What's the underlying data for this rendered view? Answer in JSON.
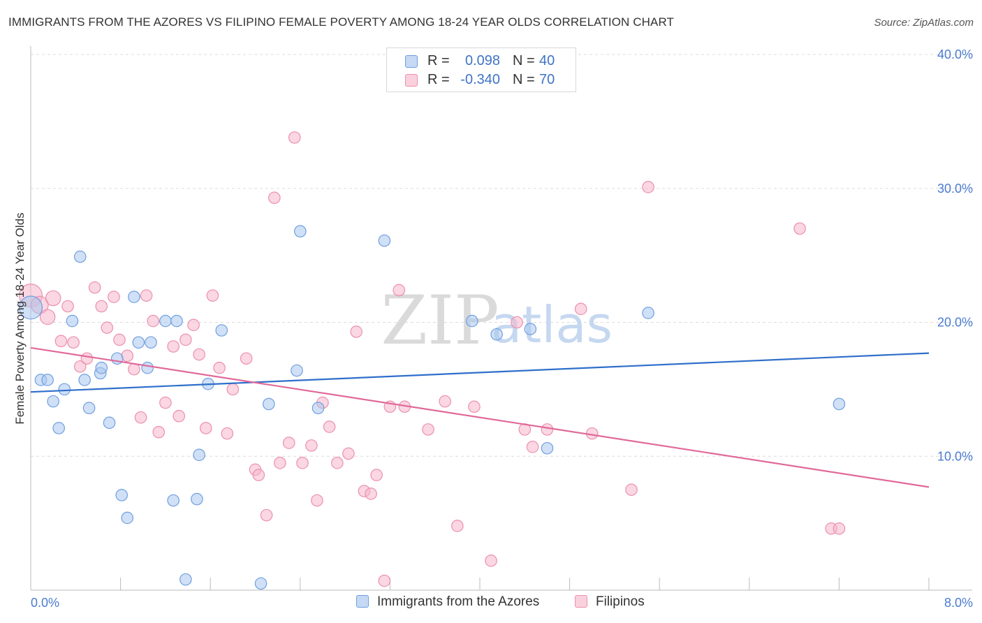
{
  "header": {
    "title": "IMMIGRANTS FROM THE AZORES VS FILIPINO FEMALE POVERTY AMONG 18-24 YEAR OLDS CORRELATION CHART",
    "source": "Source: ZipAtlas.com"
  },
  "legend": {
    "rows": [
      {
        "r_label": "R =",
        "r_value": "0.098",
        "n_label": "N =",
        "n_value": "40"
      },
      {
        "r_label": "R =",
        "r_value": "-0.340",
        "n_label": "N =",
        "n_value": "70"
      }
    ]
  },
  "bottom_legend": {
    "series1": "Immigrants from the Azores",
    "series2": "Filipinos"
  },
  "watermark": {
    "part1": "ZIP",
    "part2": "atlas"
  },
  "colors": {
    "blue_fill": "#a9c6ee",
    "blue_stroke": "#6f9fe0",
    "blue_line": "#2f6fca",
    "pink_fill": "#f6b7cb",
    "pink_stroke": "#ec8fae",
    "pink_line": "#e0699a",
    "tick_text": "#4a7bd0"
  },
  "chart_data": {
    "type": "scatter",
    "title": "IMMIGRANTS FROM THE AZORES VS FILIPINO FEMALE POVERTY AMONG 18-24 YEAR OLDS CORRELATION CHART",
    "xlabel": "",
    "ylabel": "Female Poverty Among 18-24 Year Olds",
    "xlim": [
      0,
      8
    ],
    "ylim": [
      0,
      40
    ],
    "x_tick_labels": [
      {
        "value": 0,
        "label": "0.0%"
      },
      {
        "value": 8,
        "label": "8.0%"
      }
    ],
    "y_ticks": [
      {
        "value": 10,
        "label": "10.0%"
      },
      {
        "value": 20,
        "label": "20.0%"
      },
      {
        "value": 30,
        "label": "30.0%"
      },
      {
        "value": 40,
        "label": "40.0%"
      }
    ],
    "series": [
      {
        "name": "Immigrants from the Azores",
        "color": "blue",
        "trend": {
          "x": [
            0,
            8
          ],
          "y": [
            14.8,
            17.7
          ]
        },
        "points": [
          [
            0.0,
            21.1,
            2.0
          ],
          [
            0.09,
            15.7,
            1
          ],
          [
            0.15,
            15.7,
            1
          ],
          [
            0.2,
            14.1,
            1
          ],
          [
            0.25,
            12.1,
            1
          ],
          [
            0.3,
            15.0,
            1
          ],
          [
            0.37,
            20.1,
            1
          ],
          [
            0.44,
            24.9,
            1
          ],
          [
            0.48,
            15.7,
            1
          ],
          [
            0.52,
            13.6,
            1
          ],
          [
            0.62,
            16.2,
            1
          ],
          [
            0.63,
            16.6,
            1
          ],
          [
            0.7,
            12.5,
            1
          ],
          [
            0.77,
            17.3,
            1
          ],
          [
            0.81,
            7.1,
            1
          ],
          [
            0.86,
            5.4,
            1
          ],
          [
            0.92,
            21.9,
            1
          ],
          [
            0.96,
            18.5,
            1
          ],
          [
            1.04,
            16.6,
            1
          ],
          [
            1.07,
            18.5,
            1
          ],
          [
            1.2,
            20.1,
            1
          ],
          [
            1.27,
            6.7,
            1
          ],
          [
            1.3,
            20.1,
            1
          ],
          [
            1.38,
            0.8,
            1
          ],
          [
            1.48,
            6.8,
            1
          ],
          [
            1.5,
            10.1,
            1
          ],
          [
            1.58,
            15.4,
            1
          ],
          [
            1.7,
            19.4,
            1
          ],
          [
            2.05,
            0.5,
            1
          ],
          [
            2.12,
            13.9,
            1
          ],
          [
            2.37,
            16.4,
            1
          ],
          [
            2.4,
            26.8,
            1
          ],
          [
            2.56,
            13.6,
            1
          ],
          [
            3.15,
            26.1,
            1
          ],
          [
            3.93,
            20.1,
            1
          ],
          [
            4.15,
            19.1,
            1
          ],
          [
            4.45,
            19.5,
            1
          ],
          [
            4.6,
            10.6,
            1
          ],
          [
            5.5,
            20.7,
            1
          ],
          [
            7.2,
            13.9,
            1
          ]
        ]
      },
      {
        "name": "Filipinos",
        "color": "pink",
        "trend": {
          "x": [
            0,
            8
          ],
          "y": [
            18.1,
            7.7
          ]
        },
        "points": [
          [
            0.0,
            22.0,
            2.0
          ],
          [
            0.08,
            21.3,
            1.5
          ],
          [
            0.15,
            20.4,
            1.3
          ],
          [
            0.2,
            21.8,
            1.3
          ],
          [
            0.27,
            18.6,
            1
          ],
          [
            0.33,
            21.2,
            1
          ],
          [
            0.38,
            18.5,
            1
          ],
          [
            0.44,
            16.7,
            1
          ],
          [
            0.5,
            17.3,
            1
          ],
          [
            0.57,
            22.6,
            1
          ],
          [
            0.63,
            21.2,
            1
          ],
          [
            0.68,
            19.6,
            1
          ],
          [
            0.74,
            21.9,
            1
          ],
          [
            0.79,
            18.7,
            1
          ],
          [
            0.86,
            17.5,
            1
          ],
          [
            0.92,
            16.5,
            1
          ],
          [
            0.98,
            12.9,
            1
          ],
          [
            1.03,
            22.0,
            1
          ],
          [
            1.09,
            20.1,
            1
          ],
          [
            1.14,
            11.8,
            1
          ],
          [
            1.2,
            14.0,
            1
          ],
          [
            1.27,
            18.2,
            1
          ],
          [
            1.32,
            13.0,
            1
          ],
          [
            1.38,
            18.7,
            1
          ],
          [
            1.45,
            19.8,
            1
          ],
          [
            1.5,
            17.6,
            1
          ],
          [
            1.56,
            12.1,
            1
          ],
          [
            1.62,
            22.0,
            1
          ],
          [
            1.68,
            16.6,
            1
          ],
          [
            1.75,
            11.7,
            1
          ],
          [
            1.8,
            15.0,
            1
          ],
          [
            1.92,
            17.3,
            1
          ],
          [
            2.0,
            9.0,
            1
          ],
          [
            2.03,
            8.6,
            1
          ],
          [
            2.1,
            5.6,
            1
          ],
          [
            2.17,
            29.3,
            1
          ],
          [
            2.22,
            9.5,
            1
          ],
          [
            2.3,
            11.0,
            1
          ],
          [
            2.35,
            33.8,
            1
          ],
          [
            2.42,
            9.5,
            1
          ],
          [
            2.5,
            10.8,
            1
          ],
          [
            2.55,
            6.7,
            1
          ],
          [
            2.6,
            14.0,
            1
          ],
          [
            2.66,
            12.2,
            1
          ],
          [
            2.73,
            9.5,
            1
          ],
          [
            2.83,
            10.2,
            1
          ],
          [
            2.9,
            19.3,
            1
          ],
          [
            2.97,
            7.4,
            1
          ],
          [
            3.03,
            7.2,
            1
          ],
          [
            3.08,
            8.6,
            1
          ],
          [
            3.15,
            0.7,
            1
          ],
          [
            3.2,
            13.7,
            1
          ],
          [
            3.28,
            22.4,
            1
          ],
          [
            3.33,
            13.7,
            1
          ],
          [
            3.54,
            12.0,
            1
          ],
          [
            3.69,
            14.1,
            1
          ],
          [
            3.8,
            4.8,
            1
          ],
          [
            3.95,
            13.7,
            1
          ],
          [
            4.1,
            2.2,
            1
          ],
          [
            4.33,
            20.0,
            1
          ],
          [
            4.4,
            12.0,
            1
          ],
          [
            4.47,
            10.7,
            1
          ],
          [
            4.6,
            12.0,
            1
          ],
          [
            4.9,
            21.0,
            1
          ],
          [
            5.0,
            11.7,
            1
          ],
          [
            5.35,
            7.5,
            1
          ],
          [
            5.5,
            30.1,
            1
          ],
          [
            6.85,
            27.0,
            1
          ],
          [
            7.13,
            4.6,
            1
          ],
          [
            7.2,
            4.6,
            1
          ]
        ]
      }
    ]
  }
}
